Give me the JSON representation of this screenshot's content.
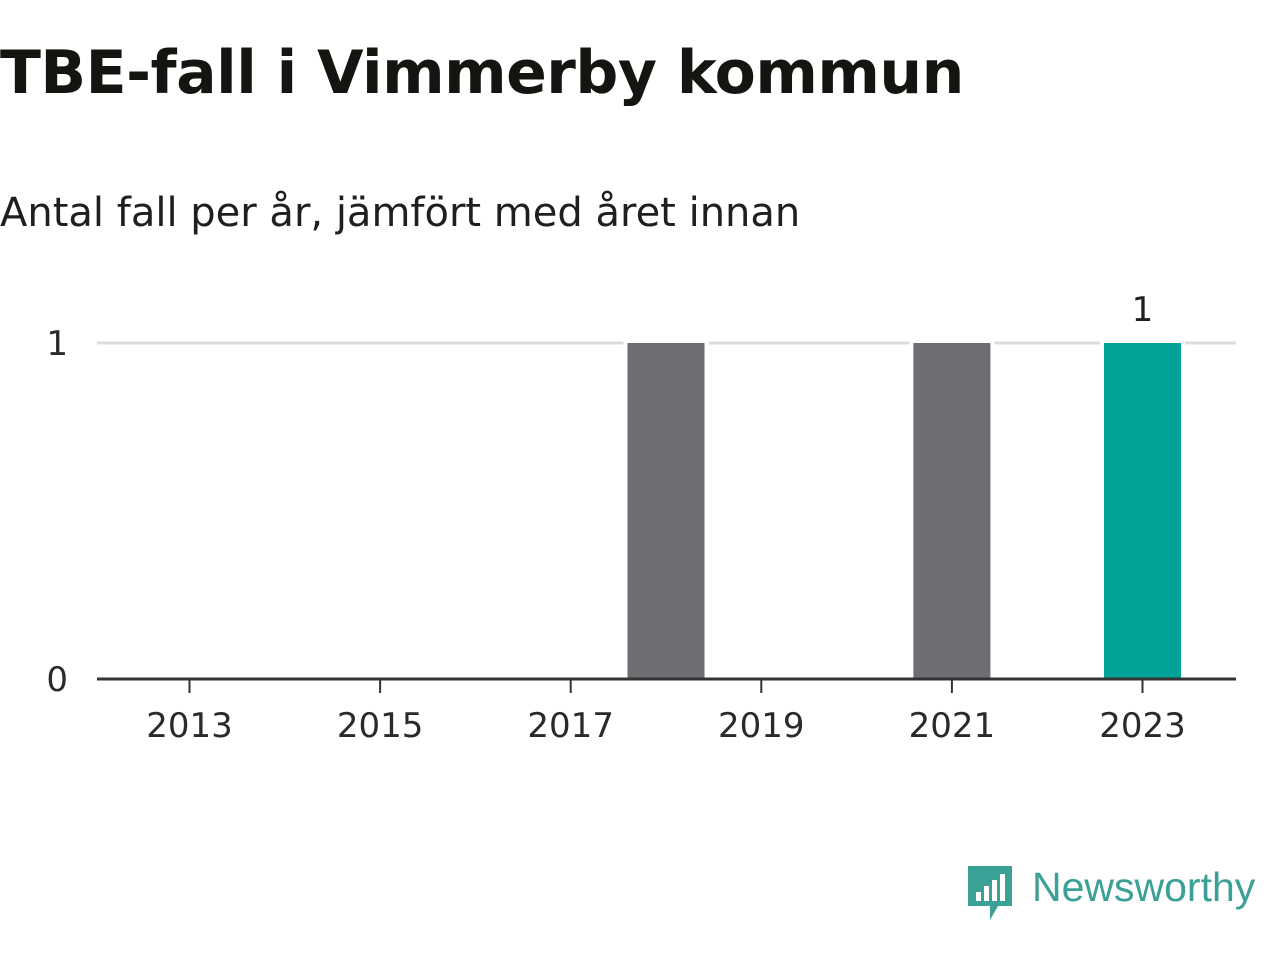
{
  "title": "TBE-fall i Vimmerby kommun",
  "subtitle": "Antal fall per år, jämfört med året innan",
  "brand": {
    "name": "Newsworthy",
    "color": "#3ba197",
    "icon": "chart-speech-bubble-icon"
  },
  "colors": {
    "bar_previous": "#6e6d72",
    "bar_current": "#00a398",
    "gridline": "#dcdcdc",
    "axis": "#333333",
    "text": "#2a2a2a"
  },
  "chart_data": {
    "type": "bar",
    "categories": [
      "2013",
      "2014",
      "2015",
      "2016",
      "2017",
      "2018",
      "2019",
      "2020",
      "2021",
      "2022",
      "2023"
    ],
    "values": [
      0,
      0,
      0,
      0,
      0,
      1,
      0,
      0,
      1,
      0,
      1
    ],
    "highlight_category": "2023",
    "x_tick_labels": [
      "2013",
      "2015",
      "2017",
      "2019",
      "2021",
      "2023"
    ],
    "y_ticks": [
      0,
      1
    ],
    "ylim": [
      0,
      1
    ],
    "data_labels": [
      {
        "category": "2023",
        "text": "1"
      }
    ],
    "grid": true,
    "legend": "none",
    "xlabel": "",
    "ylabel": ""
  }
}
